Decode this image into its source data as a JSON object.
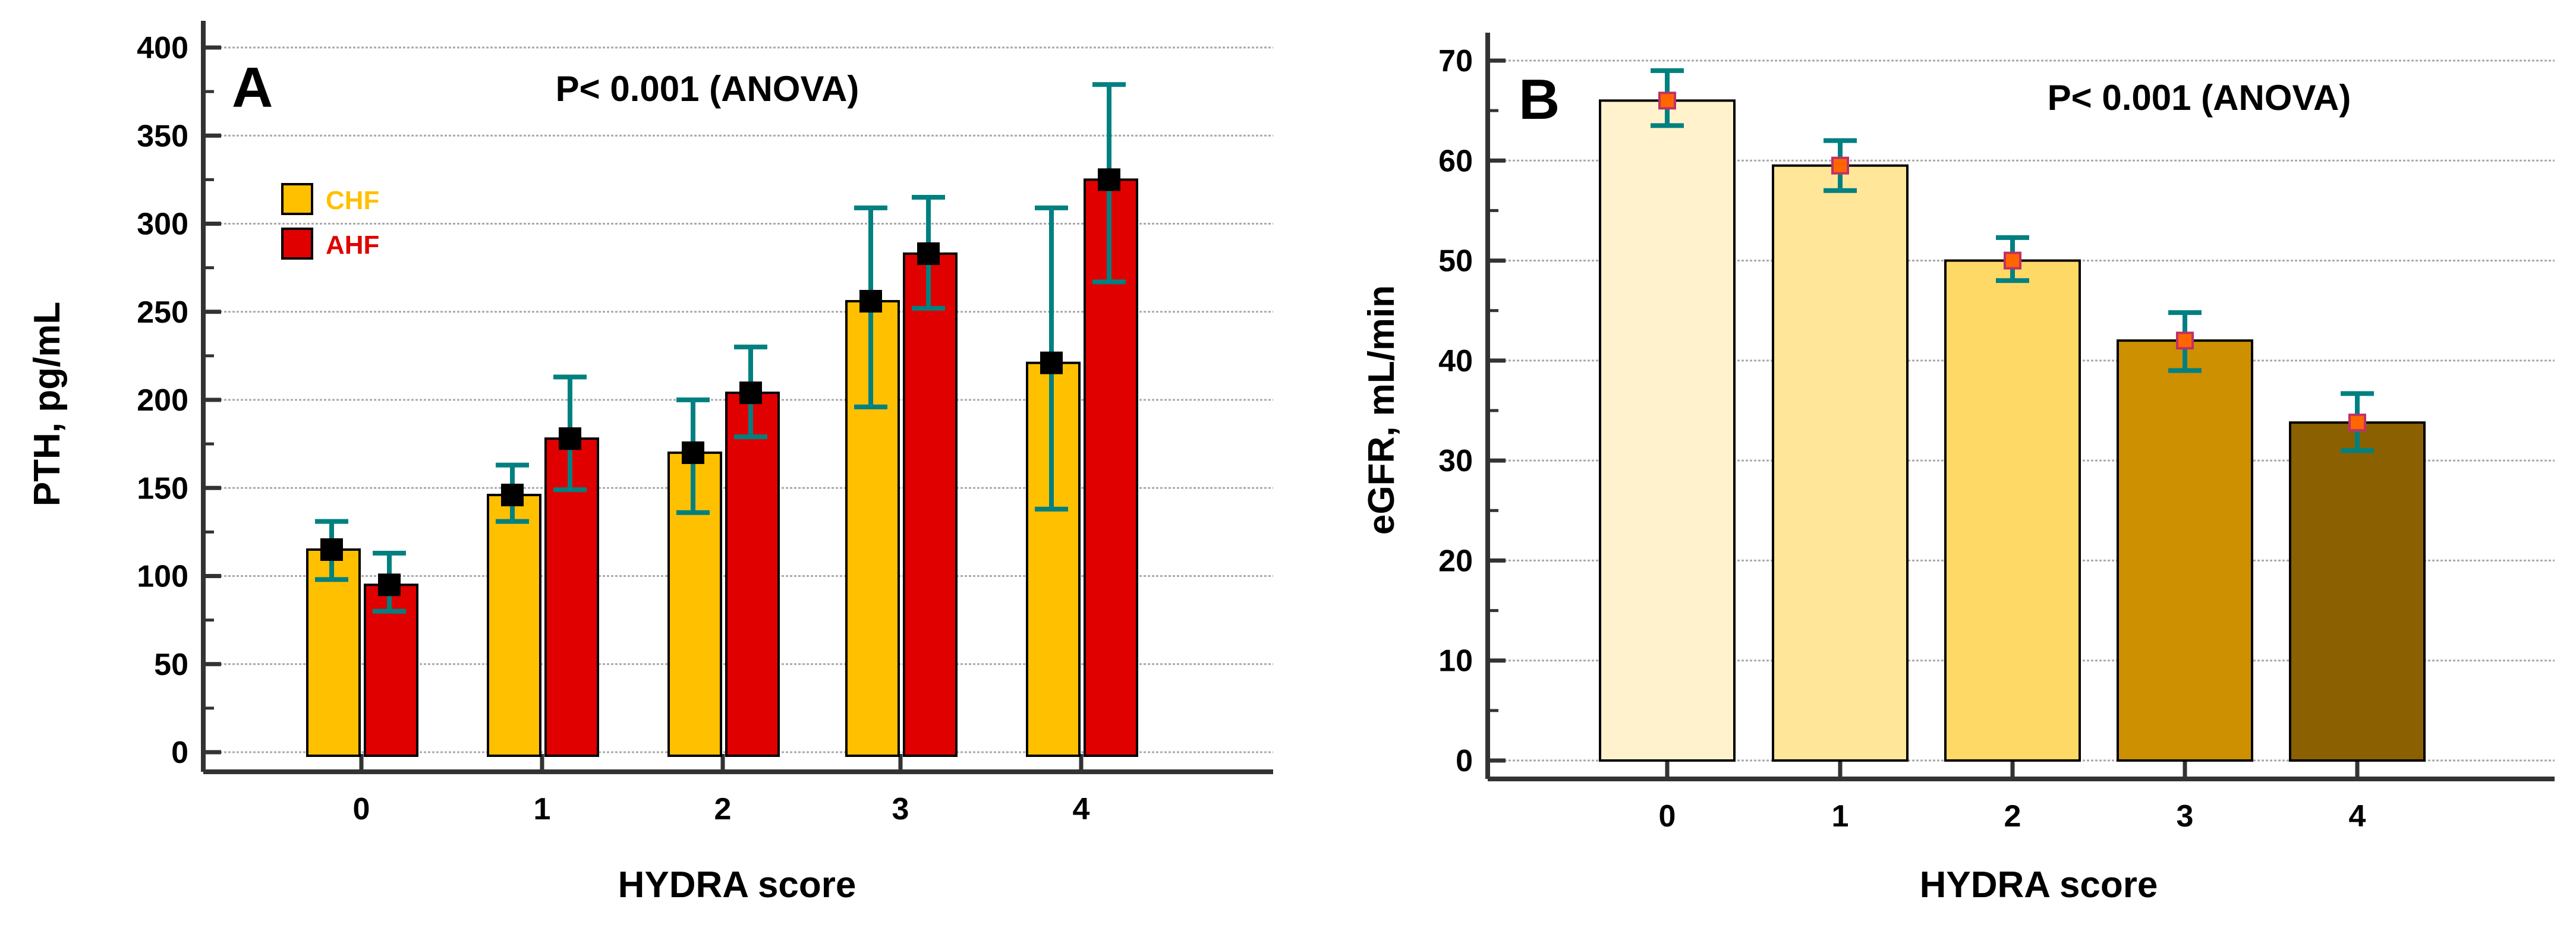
{
  "chart_data": [
    {
      "type": "bar",
      "panel_label": "A",
      "annotation": "P< 0.001 (ANOVA)",
      "xlabel": "HYDRA score",
      "ylabel": "PTH, pg/mL",
      "categories": [
        "0",
        "1",
        "2",
        "3",
        "4"
      ],
      "ylim": [
        0,
        400
      ],
      "yticks": [
        0,
        50,
        100,
        150,
        200,
        250,
        300,
        350,
        400
      ],
      "grid": true,
      "legend_position": "top-left",
      "series": [
        {
          "name": "CHF",
          "color": "#FFC000",
          "label_color": "#FFC000",
          "values": [
            115,
            146,
            170,
            256,
            221
          ],
          "err_low": [
            98,
            131,
            136,
            196,
            138
          ],
          "err_high": [
            131,
            163,
            200,
            309,
            309
          ]
        },
        {
          "name": "AHF",
          "color": "#E00000",
          "label_color": "#E00000",
          "values": [
            95,
            178,
            204,
            283,
            325
          ],
          "err_low": [
            80,
            149,
            179,
            252,
            267
          ],
          "err_high": [
            113,
            213,
            230,
            315,
            379
          ]
        }
      ],
      "errorbar_color": "#008080",
      "marker_color": "#000000"
    },
    {
      "type": "bar",
      "panel_label": "B",
      "annotation": "P< 0.001 (ANOVA)",
      "xlabel": "HYDRA score",
      "ylabel": "eGFR, mL/min",
      "categories": [
        "0",
        "1",
        "2",
        "3",
        "4"
      ],
      "ylim": [
        0,
        70
      ],
      "yticks": [
        0,
        10,
        20,
        30,
        40,
        50,
        60,
        70
      ],
      "grid": true,
      "values": [
        66,
        59.5,
        50,
        42,
        33.8
      ],
      "err_low": [
        63.5,
        57,
        48,
        39,
        31
      ],
      "err_high": [
        69,
        62,
        52.3,
        44.8,
        36.7
      ],
      "colors": [
        "#FFF2CC",
        "#FFE699",
        "#FFD966",
        "#CC9000",
        "#8B6000"
      ],
      "errorbar_color": "#008080",
      "marker_color": "#FF6600"
    }
  ]
}
